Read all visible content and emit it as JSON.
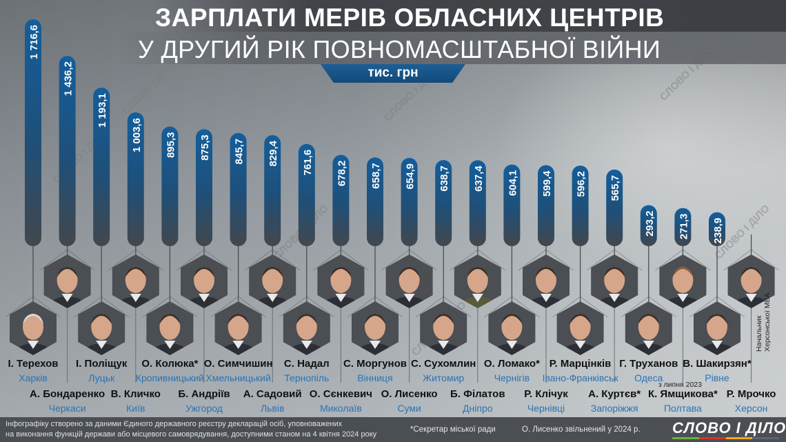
{
  "title": {
    "line1": "ЗАРПЛАТИ МЕРІВ ОБЛАСНИХ ЦЕНТРІВ",
    "line2": "У ДРУГИЙ РІК ПОВНОМАСШТАБНОЇ ВІЙНИ",
    "unit": "тис. грн"
  },
  "watermark": "СЛОВО І ДІЛО",
  "colors": {
    "bar_top": "#155f9a",
    "bar_bottom": "#44484d",
    "city": "#2a73b3",
    "name": "#111111",
    "footer": "#4b4e53"
  },
  "chart_data": {
    "type": "bar",
    "title": "Зарплати мерів обласних центрів у другий рік повномасштабної війни",
    "ylabel": "тис. грн",
    "ylim": [
      0,
      1716.6
    ],
    "categories": [
      "І. Терехов",
      "А. Бондаренко",
      "І. Поліщук",
      "В. Кличко",
      "О. Колюка*",
      "Б. Андріїв",
      "О. Симчишин",
      "А. Садовий",
      "С. Надал",
      "О. Сєнкевич",
      "С. Моргунов",
      "О. Лисенко",
      "С. Сухомлин",
      "Б. Філатов",
      "О. Ломако*",
      "Р. Клічук",
      "Р. Марцінків",
      "А. Куртєв*",
      "Г. Труханов",
      "К. Ямщикова*",
      "В. Шакирзян*",
      "Р. Мрочко"
    ],
    "values": [
      1716.6,
      1436.2,
      1193.1,
      1003.6,
      895.3,
      875.3,
      845.7,
      829.4,
      761.6,
      678.2,
      658.7,
      654.9,
      638.7,
      637.4,
      604.1,
      599.4,
      596.2,
      565.7,
      293.2,
      271.3,
      238.9,
      null
    ],
    "persons": [
      {
        "name": "І. Терехов",
        "city": "Харків",
        "value_label": "1 716,6"
      },
      {
        "name": "А. Бондаренко",
        "city": "Черкаси",
        "value_label": "1 436,2"
      },
      {
        "name": "І. Поліщук",
        "city": "Луцьк",
        "value_label": "1 193,1"
      },
      {
        "name": "В. Кличко",
        "city": "Київ",
        "value_label": "1 003,6"
      },
      {
        "name": "О. Колюка*",
        "city": "Кропивницький",
        "value_label": "895,3"
      },
      {
        "name": "Б. Андріїв",
        "city": "Ужгород",
        "value_label": "875,3"
      },
      {
        "name": "О. Симчишин",
        "city": "Хмельницький",
        "value_label": "845,7"
      },
      {
        "name": "А. Садовий",
        "city": "Львів",
        "value_label": "829,4"
      },
      {
        "name": "С. Надал",
        "city": "Тернопіль",
        "value_label": "761,6"
      },
      {
        "name": "О. Сєнкевич",
        "city": "Миколаїв",
        "value_label": "678,2"
      },
      {
        "name": "С. Моргунов",
        "city": "Вінниця",
        "value_label": "658,7"
      },
      {
        "name": "О. Лисенко",
        "city": "Суми",
        "value_label": "654,9"
      },
      {
        "name": "С. Сухомлин",
        "city": "Житомир",
        "value_label": "638,7"
      },
      {
        "name": "Б. Філатов",
        "city": "Дніпро",
        "value_label": "637,4"
      },
      {
        "name": "О. Ломако*",
        "city": "Чернігів",
        "value_label": "604,1"
      },
      {
        "name": "Р. Клічук",
        "city": "Чернівці",
        "value_label": "599,4"
      },
      {
        "name": "Р. Марцінків",
        "city": "Івано-Франківськ",
        "value_label": "596,2"
      },
      {
        "name": "А. Куртєв*",
        "city": "Запоріжжя",
        "value_label": "565,7"
      },
      {
        "name": "Г. Труханов",
        "city": "Одеса",
        "value_label": "293,2"
      },
      {
        "name": "К. Ямщикова*",
        "city": "Полтава",
        "value_label": "271,3",
        "note": "з липня 2023"
      },
      {
        "name": "В. Шакирзян*",
        "city": "Рівне",
        "value_label": "238,9"
      },
      {
        "name": "Р. Мрочко",
        "city": "Херсон",
        "value_label": null,
        "note_lines": [
          "Начальник",
          "Херсонської МВА"
        ]
      }
    ]
  },
  "footer": {
    "source_line1": "Інфографіку створено за даними Єдиного державного реєстру декларацій осіб, уповноважених",
    "source_line2": "на виконання функцій держави або місцевого самоврядування, доступними станом на 4 квітня 2024 року",
    "note_secretary": "*Секретар міської ради",
    "note_lysenko": "О. Лисенко звільнений у 2024 р.",
    "logo_text": "СЛОВО І ДІЛО",
    "logo_stripe_colors": [
      "#6bb33a",
      "#d8332f",
      "#f2a91d",
      "#5b6675"
    ]
  }
}
